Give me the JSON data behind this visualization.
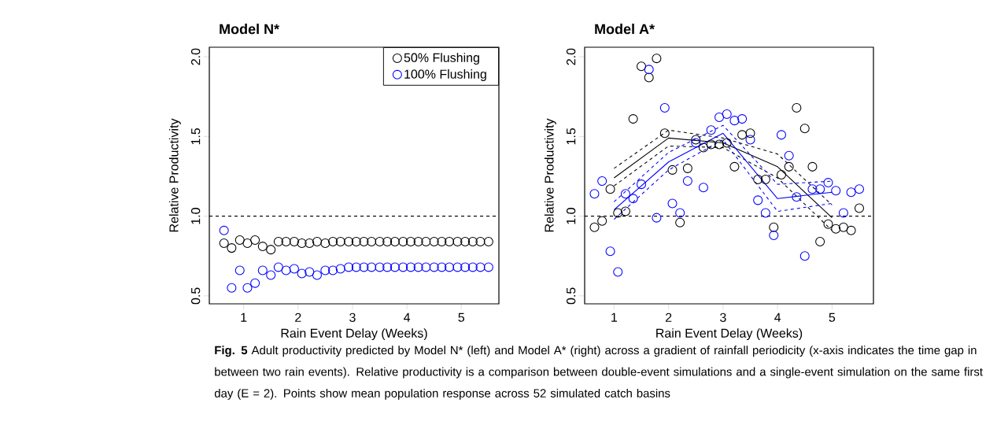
{
  "chart_data": [
    {
      "type": "scatter",
      "title": "Model N*",
      "xlabel": "Rain Event Delay (Weeks)",
      "ylabel": "Relative Productivity",
      "xlim": [
        0.37,
        5.69
      ],
      "ylim": [
        0.45,
        2.06
      ],
      "xticks": [
        1,
        2,
        3,
        4,
        5
      ],
      "yticks": [
        {
          "value": 0.5,
          "label": "0.5"
        },
        {
          "value": 1,
          "label": "1.0"
        },
        {
          "value": 1.5,
          "label": "1.5"
        },
        {
          "value": 2,
          "label": "2.0"
        }
      ],
      "legend": "top right",
      "marker": "circle",
      "x": [
        0.64,
        0.78,
        0.93,
        1.07,
        1.21,
        1.35,
        1.5,
        1.64,
        1.78,
        1.93,
        2.07,
        2.21,
        2.35,
        2.5,
        2.64,
        2.78,
        2.93,
        3.07,
        3.21,
        3.35,
        3.5,
        3.64,
        3.78,
        3.93,
        4.07,
        4.21,
        4.35,
        4.5,
        4.64,
        4.78,
        4.93,
        5.07,
        5.21,
        5.35,
        5.5
      ],
      "series": [
        {
          "name": "50% Flushing",
          "color": "#000000",
          "values": [
            0.83,
            0.8,
            0.85,
            0.83,
            0.85,
            0.81,
            0.79,
            0.84,
            0.84,
            0.84,
            0.83,
            0.83,
            0.84,
            0.83,
            0.84,
            0.84,
            0.84,
            0.84,
            0.84,
            0.84,
            0.84,
            0.84,
            0.84,
            0.84,
            0.84,
            0.84,
            0.84,
            0.84,
            0.84,
            0.84,
            0.84,
            0.84,
            0.84,
            0.84,
            0.84
          ]
        },
        {
          "name": "100% Flushing",
          "color": "#0000ff",
          "values": [
            0.91,
            0.55,
            0.66,
            0.55,
            0.58,
            0.66,
            0.63,
            0.68,
            0.66,
            0.67,
            0.64,
            0.65,
            0.63,
            0.66,
            0.66,
            0.67,
            0.68,
            0.68,
            0.68,
            0.68,
            0.68,
            0.68,
            0.68,
            0.68,
            0.68,
            0.68,
            0.68,
            0.68,
            0.68,
            0.68,
            0.68,
            0.68,
            0.68,
            0.68,
            0.68
          ]
        }
      ],
      "ref_lines": [
        {
          "axis": "y",
          "value": 1,
          "line_style": "dashed"
        }
      ],
      "annotations": [
        "**Fig. 5** Adult productivity predicted by Model N* (left) and Model A* (right) across a gradient of rainfall periodicity (x-axis indicates the time gap in between two rain events). Relative productivity is a comparison between double-event simulations and a single-event simulation on the same first day (E = 2). Points show mean population response across 52 simulated catch basins"
      ]
    },
    {
      "type": "scatter",
      "title": "Model A*",
      "xlabel": "Rain Event Delay (Weeks)",
      "ylabel": "Relative Productivity",
      "xlim": [
        0.46,
        5.76
      ],
      "ylim": [
        0.45,
        2.06
      ],
      "xticks": [
        1,
        2,
        3,
        4,
        5
      ],
      "yticks": [
        {
          "value": 0.5,
          "label": "0.5"
        },
        {
          "value": 1,
          "label": "1.0"
        },
        {
          "value": 1.5,
          "label": "1.5"
        },
        {
          "value": 2,
          "label": "2.0"
        }
      ],
      "marker": "circle",
      "x": [
        0.64,
        0.78,
        0.93,
        1.07,
        1.21,
        1.35,
        1.5,
        1.64,
        1.78,
        1.93,
        2.07,
        2.21,
        2.35,
        2.5,
        2.64,
        2.78,
        2.93,
        3.07,
        3.21,
        3.35,
        3.5,
        3.64,
        3.78,
        3.93,
        4.07,
        4.21,
        4.35,
        4.5,
        4.64,
        4.78,
        4.93,
        5.07,
        5.21,
        5.35,
        5.5
      ],
      "series": [
        {
          "color": "#000000",
          "values": [
            0.93,
            0.97,
            1.17,
            1.02,
            1.03,
            1.61,
            1.94,
            1.87,
            1.99,
            1.52,
            1.29,
            0.96,
            1.3,
            1.48,
            1.43,
            1.45,
            1.45,
            1.46,
            1.31,
            1.51,
            1.52,
            1.23,
            1.23,
            0.93,
            1.26,
            1.31,
            1.68,
            1.55,
            1.31,
            0.84,
            0.95,
            0.92,
            0.93,
            0.91,
            1.05
          ]
        },
        {
          "color": "#0000ff",
          "values": [
            1.14,
            1.22,
            0.78,
            0.65,
            1.14,
            1.11,
            1.2,
            1.92,
            0.99,
            1.68,
            1.08,
            1.02,
            1.22,
            1.46,
            1.18,
            1.54,
            1.62,
            1.64,
            1.6,
            1.61,
            1.48,
            1.1,
            1.02,
            0.88,
            1.51,
            1.38,
            1.12,
            0.75,
            1.17,
            1.17,
            1.21,
            1.16,
            1.02,
            1.15,
            1.17
          ]
        },
        {
          "type": "line",
          "marker": "none",
          "line_style": "solid",
          "color": "#000000",
          "x": [
            1,
            2,
            3,
            4,
            5
          ],
          "values": [
            1.24,
            1.49,
            1.46,
            1.31,
            0.99
          ]
        },
        {
          "type": "line",
          "marker": "none",
          "line_style": "dashed",
          "color": "#000000",
          "x": [
            1,
            2,
            3,
            4,
            5
          ],
          "values": [
            1.3,
            1.54,
            1.49,
            1.39,
            1.07
          ]
        },
        {
          "type": "line",
          "marker": "none",
          "line_style": "dashed",
          "color": "#000000",
          "x": [
            1,
            2,
            3,
            4,
            5
          ],
          "values": [
            1.19,
            1.44,
            1.43,
            1.24,
            0.91
          ]
        },
        {
          "type": "line",
          "marker": "none",
          "line_style": "solid",
          "color": "#0000ff",
          "x": [
            1,
            2,
            3,
            4,
            5
          ],
          "values": [
            1.04,
            1.34,
            1.52,
            1.11,
            1.15
          ]
        },
        {
          "type": "line",
          "marker": "none",
          "line_style": "dashed",
          "color": "#0000ff",
          "x": [
            1,
            2,
            3,
            4,
            5
          ],
          "values": [
            1.09,
            1.4,
            1.57,
            1.2,
            1.22
          ]
        },
        {
          "type": "line",
          "marker": "none",
          "line_style": "dashed",
          "color": "#0000ff",
          "x": [
            1,
            2,
            3,
            4,
            5
          ],
          "values": [
            0.98,
            1.29,
            1.48,
            1.03,
            1.08
          ]
        }
      ],
      "ref_lines": [
        {
          "axis": "y",
          "value": 1,
          "line_style": "dashed"
        }
      ]
    }
  ]
}
